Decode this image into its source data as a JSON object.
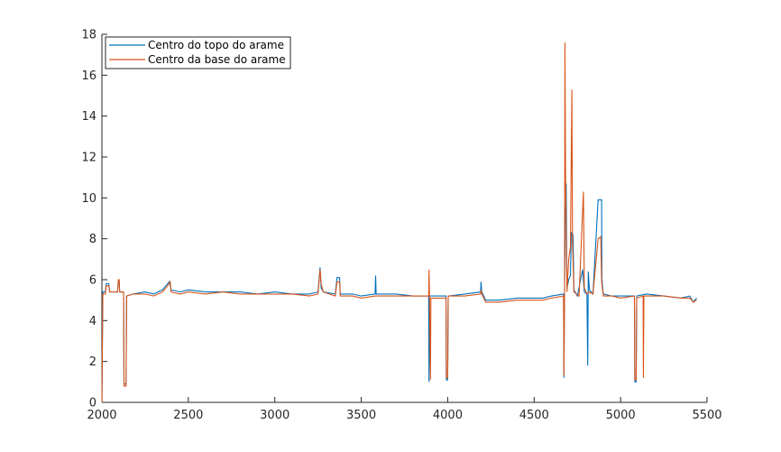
{
  "chart_data": {
    "type": "line",
    "title": "",
    "xlabel": "",
    "ylabel": "",
    "xlim": [
      2000,
      5500
    ],
    "ylim": [
      0,
      18
    ],
    "xticks": [
      2000,
      2500,
      3000,
      3500,
      4000,
      4500,
      5000,
      5500
    ],
    "yticks": [
      0,
      2,
      4,
      6,
      8,
      10,
      12,
      14,
      16,
      18
    ],
    "grid": false,
    "legend_position": "top-left",
    "series": [
      {
        "name": "Centro do topo do arame",
        "color": "#0072BD",
        "points": [
          [
            2000,
            0.0
          ],
          [
            2005,
            5.4
          ],
          [
            2020,
            5.4
          ],
          [
            2025,
            5.8
          ],
          [
            2040,
            5.8
          ],
          [
            2045,
            5.4
          ],
          [
            2090,
            5.4
          ],
          [
            2095,
            5.9
          ],
          [
            2100,
            5.9
          ],
          [
            2103,
            5.4
          ],
          [
            2125,
            5.4
          ],
          [
            2128,
            0.9
          ],
          [
            2140,
            0.9
          ],
          [
            2143,
            5.2
          ],
          [
            2180,
            5.3
          ],
          [
            2250,
            5.4
          ],
          [
            2300,
            5.3
          ],
          [
            2350,
            5.5
          ],
          [
            2380,
            5.8
          ],
          [
            2390,
            5.9
          ],
          [
            2400,
            5.5
          ],
          [
            2450,
            5.4
          ],
          [
            2500,
            5.5
          ],
          [
            2600,
            5.4
          ],
          [
            2700,
            5.4
          ],
          [
            2800,
            5.4
          ],
          [
            2900,
            5.3
          ],
          [
            3000,
            5.4
          ],
          [
            3100,
            5.3
          ],
          [
            3200,
            5.3
          ],
          [
            3250,
            5.4
          ],
          [
            3262,
            6.6
          ],
          [
            3268,
            5.6
          ],
          [
            3280,
            5.4
          ],
          [
            3350,
            5.3
          ],
          [
            3360,
            6.1
          ],
          [
            3375,
            6.1
          ],
          [
            3378,
            5.3
          ],
          [
            3450,
            5.3
          ],
          [
            3500,
            5.2
          ],
          [
            3580,
            5.3
          ],
          [
            3583,
            6.2
          ],
          [
            3586,
            5.3
          ],
          [
            3700,
            5.3
          ],
          [
            3800,
            5.2
          ],
          [
            3890,
            5.2
          ],
          [
            3892,
            1.0
          ],
          [
            3895,
            5.2
          ],
          [
            3990,
            5.2
          ],
          [
            3992,
            1.1
          ],
          [
            4000,
            1.1
          ],
          [
            4003,
            5.2
          ],
          [
            4100,
            5.3
          ],
          [
            4190,
            5.4
          ],
          [
            4193,
            5.9
          ],
          [
            4197,
            5.4
          ],
          [
            4220,
            5.0
          ],
          [
            4300,
            5.0
          ],
          [
            4400,
            5.1
          ],
          [
            4500,
            5.1
          ],
          [
            4550,
            5.1
          ],
          [
            4600,
            5.2
          ],
          [
            4670,
            5.3
          ],
          [
            4672,
            1.2
          ],
          [
            4676,
            5.5
          ],
          [
            4680,
            9.0
          ],
          [
            4685,
            10.7
          ],
          [
            4690,
            5.6
          ],
          [
            4700,
            6.0
          ],
          [
            4710,
            6.2
          ],
          [
            4715,
            8.3
          ],
          [
            4725,
            8.2
          ],
          [
            4730,
            5.5
          ],
          [
            4750,
            5.2
          ],
          [
            4780,
            6.5
          ],
          [
            4790,
            5.4
          ],
          [
            4805,
            5.3
          ],
          [
            4810,
            1.8
          ],
          [
            4813,
            6.4
          ],
          [
            4820,
            5.5
          ],
          [
            4840,
            5.3
          ],
          [
            4870,
            9.9
          ],
          [
            4890,
            9.9
          ],
          [
            4892,
            6.0
          ],
          [
            4900,
            5.3
          ],
          [
            4950,
            5.2
          ],
          [
            5000,
            5.2
          ],
          [
            5080,
            5.2
          ],
          [
            5082,
            1.0
          ],
          [
            5090,
            1.0
          ],
          [
            5093,
            5.2
          ],
          [
            5150,
            5.3
          ],
          [
            5250,
            5.2
          ],
          [
            5350,
            5.1
          ],
          [
            5400,
            5.2
          ],
          [
            5420,
            4.9
          ],
          [
            5440,
            5.1
          ]
        ]
      },
      {
        "name": "Centro da base do arame",
        "color": "#D95319",
        "points": [
          [
            2000,
            0.0
          ],
          [
            2005,
            5.3
          ],
          [
            2020,
            5.3
          ],
          [
            2025,
            5.7
          ],
          [
            2040,
            5.7
          ],
          [
            2045,
            5.4
          ],
          [
            2090,
            5.4
          ],
          [
            2095,
            6.0
          ],
          [
            2100,
            6.0
          ],
          [
            2103,
            5.4
          ],
          [
            2125,
            5.4
          ],
          [
            2128,
            0.8
          ],
          [
            2140,
            0.8
          ],
          [
            2143,
            5.2
          ],
          [
            2180,
            5.3
          ],
          [
            2250,
            5.3
          ],
          [
            2300,
            5.2
          ],
          [
            2350,
            5.4
          ],
          [
            2380,
            5.7
          ],
          [
            2395,
            5.9
          ],
          [
            2400,
            5.4
          ],
          [
            2450,
            5.3
          ],
          [
            2500,
            5.4
          ],
          [
            2600,
            5.3
          ],
          [
            2700,
            5.4
          ],
          [
            2800,
            5.3
          ],
          [
            2900,
            5.3
          ],
          [
            3000,
            5.3
          ],
          [
            3100,
            5.3
          ],
          [
            3200,
            5.2
          ],
          [
            3250,
            5.3
          ],
          [
            3262,
            6.5
          ],
          [
            3268,
            5.8
          ],
          [
            3280,
            5.4
          ],
          [
            3350,
            5.2
          ],
          [
            3360,
            5.9
          ],
          [
            3375,
            5.9
          ],
          [
            3378,
            5.2
          ],
          [
            3450,
            5.2
          ],
          [
            3500,
            5.1
          ],
          [
            3580,
            5.2
          ],
          [
            3700,
            5.2
          ],
          [
            3800,
            5.2
          ],
          [
            3890,
            5.2
          ],
          [
            3892,
            6.5
          ],
          [
            3895,
            5.0
          ],
          [
            3900,
            1.1
          ],
          [
            3903,
            5.1
          ],
          [
            3990,
            5.1
          ],
          [
            3992,
            1.2
          ],
          [
            4000,
            1.2
          ],
          [
            4003,
            5.2
          ],
          [
            4100,
            5.2
          ],
          [
            4190,
            5.3
          ],
          [
            4193,
            5.5
          ],
          [
            4197,
            5.3
          ],
          [
            4220,
            4.9
          ],
          [
            4300,
            4.9
          ],
          [
            4400,
            5.0
          ],
          [
            4500,
            5.0
          ],
          [
            4550,
            5.0
          ],
          [
            4600,
            5.1
          ],
          [
            4670,
            5.2
          ],
          [
            4672,
            1.3
          ],
          [
            4676,
            5.5
          ],
          [
            4678,
            17.6
          ],
          [
            4682,
            10.7
          ],
          [
            4690,
            5.4
          ],
          [
            4700,
            7.0
          ],
          [
            4710,
            7.6
          ],
          [
            4718,
            15.3
          ],
          [
            4722,
            7.8
          ],
          [
            4730,
            5.4
          ],
          [
            4760,
            5.2
          ],
          [
            4785,
            10.3
          ],
          [
            4790,
            5.6
          ],
          [
            4805,
            5.3
          ],
          [
            4820,
            5.4
          ],
          [
            4840,
            5.3
          ],
          [
            4870,
            8.0
          ],
          [
            4885,
            8.1
          ],
          [
            4890,
            5.9
          ],
          [
            4900,
            5.2
          ],
          [
            4950,
            5.2
          ],
          [
            5000,
            5.1
          ],
          [
            5080,
            5.2
          ],
          [
            5082,
            1.1
          ],
          [
            5090,
            1.1
          ],
          [
            5093,
            5.1
          ],
          [
            5130,
            5.2
          ],
          [
            5132,
            1.2
          ],
          [
            5135,
            5.2
          ],
          [
            5250,
            5.2
          ],
          [
            5350,
            5.1
          ],
          [
            5400,
            5.1
          ],
          [
            5420,
            4.9
          ],
          [
            5440,
            5.0
          ]
        ]
      }
    ]
  }
}
